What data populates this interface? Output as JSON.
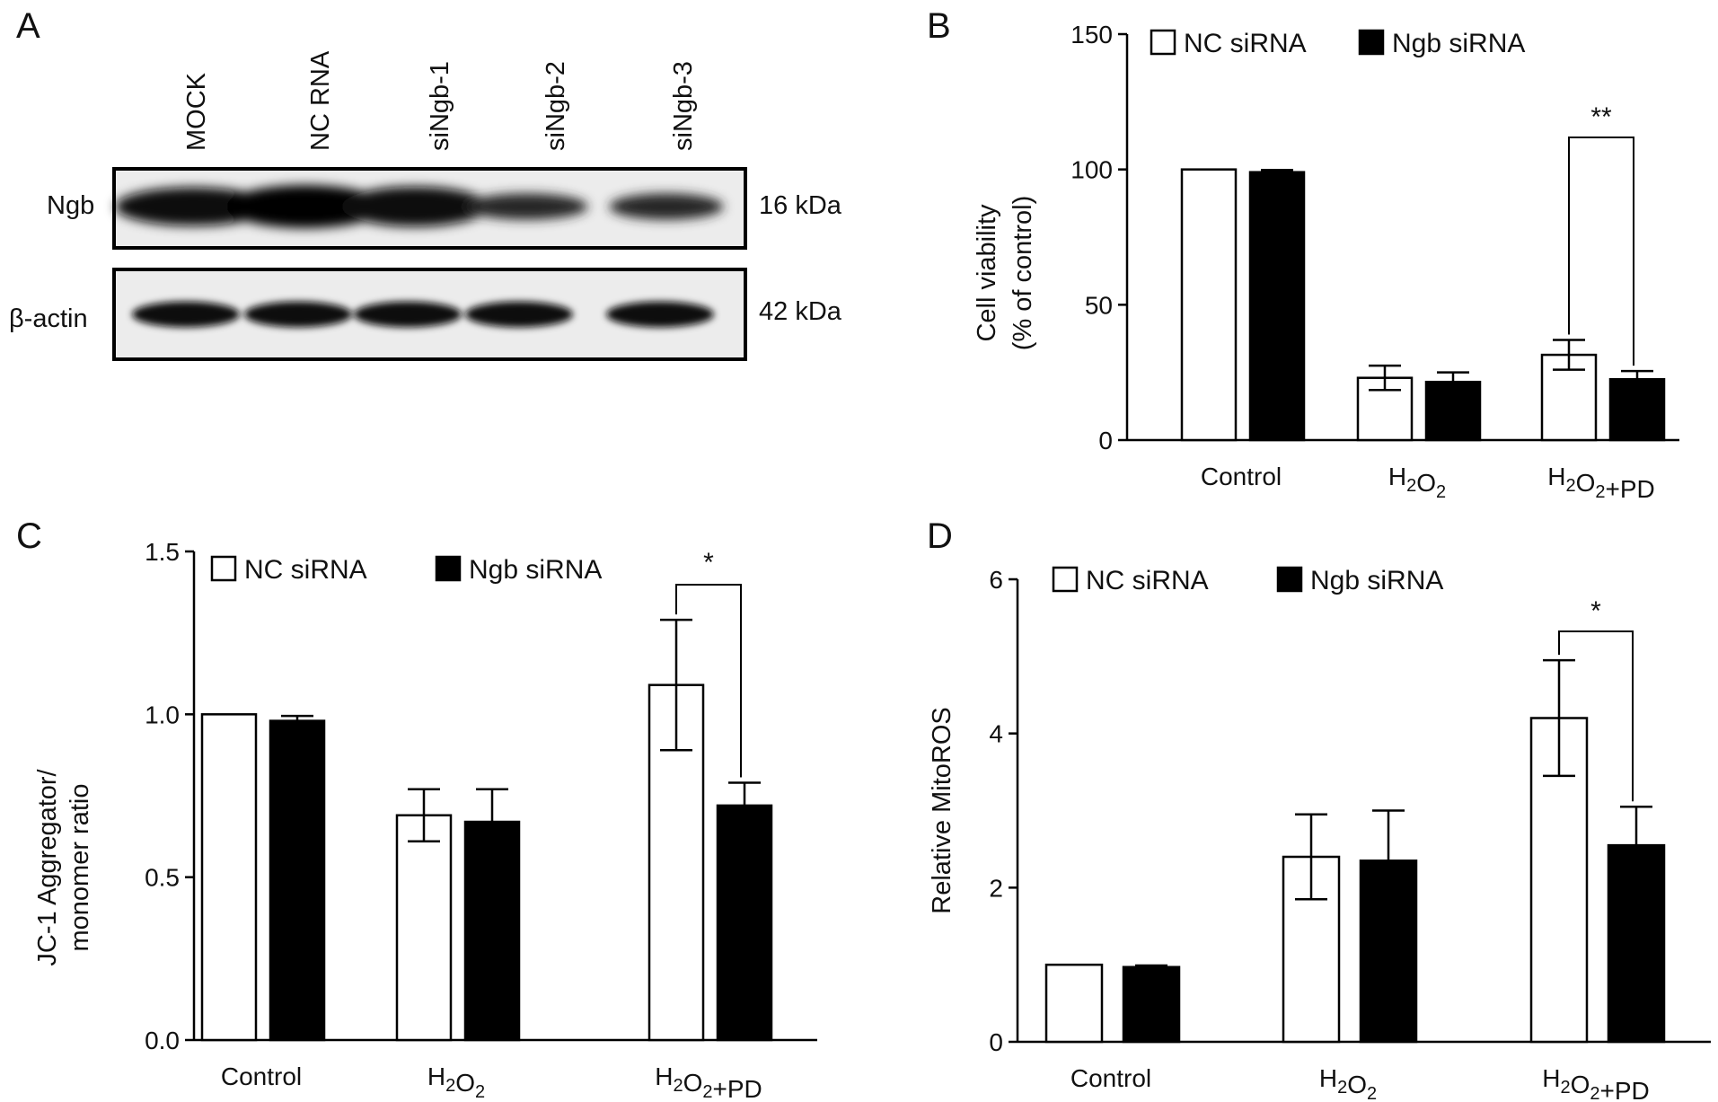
{
  "panels": {
    "A": {
      "letter": "A",
      "lanes": [
        "MOCK",
        "NC RNA",
        "siNgb-1",
        "siNgb-2",
        "siNgb-3"
      ],
      "blots": [
        {
          "label": "Ngb",
          "size": "16 kDa",
          "band_intensity": [
            0.85,
            1.0,
            0.9,
            0.45,
            0.45
          ]
        },
        {
          "label": "β-actin",
          "size": "42 kDa",
          "band_intensity": [
            0.95,
            0.95,
            0.95,
            0.95,
            0.95
          ]
        }
      ]
    }
  },
  "chart_data": [
    {
      "id": "B",
      "letter": "B",
      "type": "bar",
      "categories": [
        "Control",
        "H2O2",
        "H2O2+PD"
      ],
      "series": [
        {
          "name": "NC siRNA",
          "color": "#ffffff",
          "values": [
            100,
            23,
            31.5
          ],
          "errors": [
            0,
            4.5,
            5.5
          ]
        },
        {
          "name": "Ngb siRNA",
          "color": "#000000",
          "values": [
            99,
            21.5,
            22.5
          ],
          "errors": [
            0.8,
            3.5,
            3
          ]
        }
      ],
      "ylabel_lines": [
        "Cell viability",
        "(% of control)"
      ],
      "ylim": [
        0,
        150
      ],
      "yticks": [
        0,
        50,
        100,
        150
      ],
      "significance": [
        {
          "category": 2,
          "label": "**"
        }
      ],
      "legend": "top-left",
      "grid": false
    },
    {
      "id": "C",
      "letter": "C",
      "type": "bar",
      "categories": [
        "Control",
        "H2O2",
        "H2O2+PD"
      ],
      "series": [
        {
          "name": "NC siRNA",
          "color": "#ffffff",
          "values": [
            1.0,
            0.69,
            1.09
          ],
          "errors": [
            0,
            0.08,
            0.2
          ]
        },
        {
          "name": "Ngb siRNA",
          "color": "#000000",
          "values": [
            0.98,
            0.67,
            0.72
          ],
          "errors": [
            0.015,
            0.1,
            0.07
          ]
        }
      ],
      "ylabel_lines": [
        "JC-1 Aggregator/",
        "monomer ratio"
      ],
      "ylim": [
        0,
        1.5
      ],
      "yticks": [
        "0.0",
        "0.5",
        "1.0",
        "1.5"
      ],
      "significance": [
        {
          "category": 2,
          "label": "*"
        }
      ],
      "legend": "top-left",
      "grid": false
    },
    {
      "id": "D",
      "letter": "D",
      "type": "bar",
      "categories": [
        "Control",
        "H2O2",
        "H2O2+PD"
      ],
      "series": [
        {
          "name": "NC siRNA",
          "color": "#ffffff",
          "values": [
            1.0,
            2.4,
            4.2
          ],
          "errors": [
            0,
            0.55,
            0.75
          ]
        },
        {
          "name": "Ngb siRNA",
          "color": "#000000",
          "values": [
            0.97,
            2.35,
            2.55
          ],
          "errors": [
            0.02,
            0.65,
            0.5
          ]
        }
      ],
      "ylabel_lines": [
        "Relative MitoROS"
      ],
      "ylim": [
        0,
        6
      ],
      "yticks": [
        0,
        2,
        4,
        6
      ],
      "significance": [
        {
          "category": 2,
          "label": "*"
        }
      ],
      "legend": "top-left",
      "grid": false
    }
  ]
}
